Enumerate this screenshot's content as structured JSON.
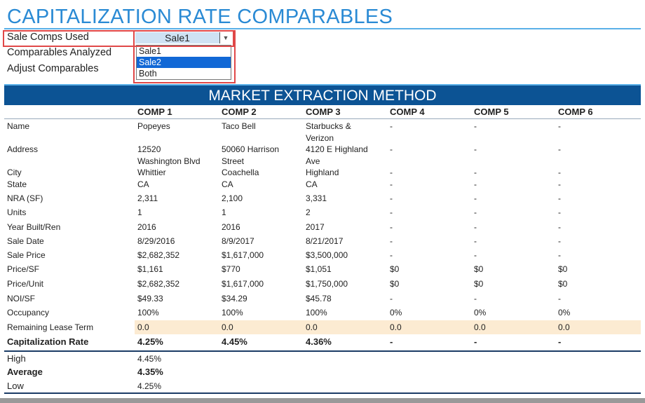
{
  "title": "CAPITALIZATION RATE COMPARABLES",
  "controls": {
    "sale_comps_label": "Sale Comps Used",
    "sale_comps_value": "Sale1",
    "options": [
      "Sale1",
      "Sale2",
      "Both"
    ],
    "highlighted_option": "Sale2",
    "comparables_analyzed_label": "Comparables Analyzed",
    "adjust_comparables_label": "Adjust Comparables"
  },
  "section_title": "MARKET EXTRACTION METHOD",
  "columns": [
    "COMP 1",
    "COMP 2",
    "COMP 3",
    "COMP 4",
    "COMP 5",
    "COMP 6"
  ],
  "rows": [
    {
      "label": "Name",
      "values": [
        "Popeyes",
        "Taco Bell",
        "Starbucks &\nVerizon",
        "-",
        "-",
        "-"
      ]
    },
    {
      "label": "Address",
      "values": [
        "12520\nWashington Blvd",
        "50060 Harrison\nStreet",
        "4120 E Highland\nAve",
        "-",
        "-",
        "-"
      ]
    },
    {
      "label": "City",
      "values": [
        "Whittier",
        "Coachella",
        "Highland",
        "-",
        "-",
        "-"
      ]
    },
    {
      "label": "State",
      "values": [
        "CA",
        "CA",
        "CA",
        "-",
        "-",
        "-"
      ]
    },
    {
      "label": "NRA (SF)",
      "values": [
        "2,311",
        "2,100",
        "3,331",
        "-",
        "-",
        "-"
      ]
    },
    {
      "label": "Units",
      "values": [
        "1",
        "1",
        "2",
        "-",
        "-",
        "-"
      ]
    },
    {
      "label": "Year Built/Ren",
      "values": [
        "2016",
        "2016",
        "2017",
        "-",
        "-",
        "-"
      ]
    },
    {
      "label": "Sale Date",
      "values": [
        "8/29/2016",
        "8/9/2017",
        "8/21/2017",
        "-",
        "-",
        "-"
      ]
    },
    {
      "label": "Sale Price",
      "values": [
        "$2,682,352",
        "$1,617,000",
        "$3,500,000",
        "-",
        "-",
        "-"
      ]
    },
    {
      "label": "Price/SF",
      "values": [
        "$1,161",
        "$770",
        "$1,051",
        "$0",
        "$0",
        "$0"
      ]
    },
    {
      "label": "Price/Unit",
      "values": [
        "$2,682,352",
        "$1,617,000",
        "$1,750,000",
        "$0",
        "$0",
        "$0"
      ]
    },
    {
      "label": "NOI/SF",
      "values": [
        "$49.33",
        "$34.29",
        "$45.78",
        "-",
        "-",
        "-"
      ]
    },
    {
      "label": "Occupancy",
      "values": [
        "100%",
        "100%",
        "100%",
        "0%",
        "0%",
        "0%"
      ]
    },
    {
      "label": "Remaining Lease Term",
      "values": [
        "0.0",
        "0.0",
        "0.0",
        "0.0",
        "0.0",
        "0.0"
      ]
    },
    {
      "label": "Capitalization Rate",
      "values": [
        "4.25%",
        "4.45%",
        "4.36%",
        "-",
        "-",
        "-"
      ]
    }
  ],
  "summary": [
    {
      "label": "High",
      "value": "4.45%"
    },
    {
      "label": "Average",
      "value": "4.35%"
    },
    {
      "label": "Low",
      "value": "4.25%"
    }
  ],
  "colors": {
    "accent": "#2a8ad4",
    "band": "#0c5394",
    "highlight_row": "#fcebd2",
    "selection": "#1168d6",
    "annotation": "#e04848"
  }
}
